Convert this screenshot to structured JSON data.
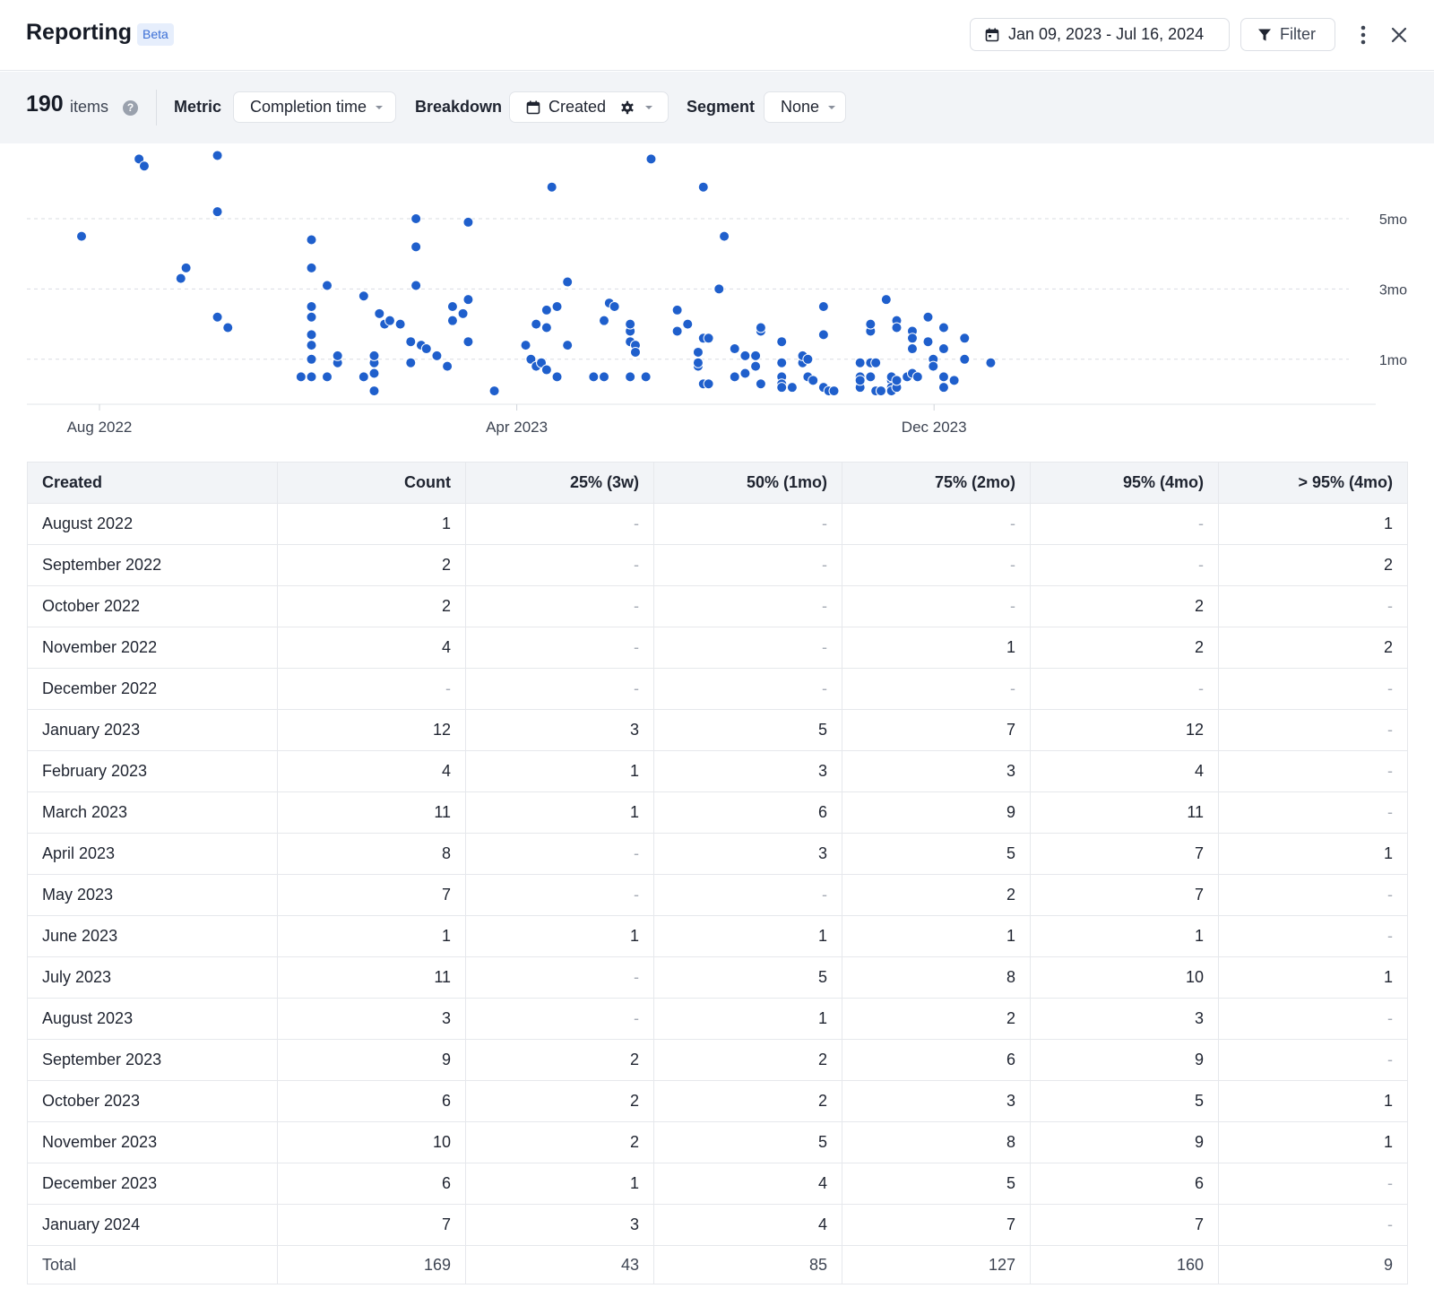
{
  "header": {
    "title": "Reporting",
    "badge": "Beta",
    "date_range": "Jan 09, 2023 - Jul 16, 2024",
    "filter_label": "Filter"
  },
  "controls": {
    "item_count": "190",
    "item_count_label": "items",
    "help_glyph": "?",
    "metric_label": "Metric",
    "metric_value": "Completion time",
    "breakdown_label": "Breakdown",
    "breakdown_value": "Created",
    "segment_label": "Segment",
    "segment_value": "None"
  },
  "chart_data": {
    "type": "scatter",
    "title": "",
    "xlabel": "",
    "ylabel": "",
    "x_ticks": [
      "Aug 2022",
      "Apr 2023",
      "Dec 2023"
    ],
    "y_ticks": [
      "1mo",
      "3mo",
      "5mo"
    ],
    "grid": "horizontal dashed",
    "point_color": "#1f5fcc",
    "x_units": "months since Aug 2022",
    "y_units": "months",
    "points": [
      [
        0.0,
        4.5
      ],
      [
        1.1,
        6.7
      ],
      [
        1.2,
        6.5
      ],
      [
        1.9,
        3.3
      ],
      [
        2.0,
        3.6
      ],
      [
        2.6,
        6.8
      ],
      [
        2.6,
        5.2
      ],
      [
        2.6,
        2.2
      ],
      [
        2.8,
        1.9
      ],
      [
        4.2,
        0.5
      ],
      [
        4.4,
        0.5
      ],
      [
        4.4,
        1.0
      ],
      [
        4.4,
        1.4
      ],
      [
        4.4,
        1.7
      ],
      [
        4.4,
        2.2
      ],
      [
        4.4,
        2.5
      ],
      [
        4.4,
        3.6
      ],
      [
        4.4,
        4.4
      ],
      [
        4.7,
        0.5
      ],
      [
        4.7,
        3.1
      ],
      [
        4.9,
        0.9
      ],
      [
        4.9,
        1.1
      ],
      [
        5.4,
        0.5
      ],
      [
        5.4,
        2.8
      ],
      [
        5.6,
        0.1
      ],
      [
        5.6,
        0.6
      ],
      [
        5.6,
        0.9
      ],
      [
        5.6,
        1.1
      ],
      [
        5.7,
        2.3
      ],
      [
        5.8,
        2.0
      ],
      [
        5.9,
        2.1
      ],
      [
        6.1,
        2.0
      ],
      [
        6.3,
        0.9
      ],
      [
        6.3,
        1.5
      ],
      [
        6.4,
        4.2
      ],
      [
        6.4,
        5.0
      ],
      [
        6.4,
        3.1
      ],
      [
        6.5,
        1.4
      ],
      [
        6.6,
        1.3
      ],
      [
        6.8,
        1.1
      ],
      [
        7.0,
        0.8
      ],
      [
        7.1,
        2.5
      ],
      [
        7.1,
        2.1
      ],
      [
        7.3,
        2.3
      ],
      [
        7.4,
        1.5
      ],
      [
        7.4,
        2.7
      ],
      [
        7.4,
        4.9
      ],
      [
        7.9,
        0.1
      ],
      [
        8.5,
        1.4
      ],
      [
        8.6,
        1.0
      ],
      [
        8.7,
        2.0
      ],
      [
        8.7,
        0.8
      ],
      [
        8.8,
        0.9
      ],
      [
        8.9,
        0.7
      ],
      [
        8.9,
        1.9
      ],
      [
        9.0,
        5.9
      ],
      [
        8.9,
        2.4
      ],
      [
        9.1,
        0.5
      ],
      [
        9.1,
        2.5
      ],
      [
        9.3,
        1.4
      ],
      [
        9.3,
        3.2
      ],
      [
        9.8,
        0.5
      ],
      [
        10.0,
        0.5
      ],
      [
        10.0,
        2.1
      ],
      [
        10.1,
        2.6
      ],
      [
        10.2,
        2.5
      ],
      [
        10.5,
        1.8
      ],
      [
        10.5,
        1.5
      ],
      [
        10.5,
        2.0
      ],
      [
        10.6,
        1.4
      ],
      [
        10.6,
        1.2
      ],
      [
        10.5,
        0.5
      ],
      [
        10.8,
        0.5
      ],
      [
        10.9,
        6.7
      ],
      [
        11.4,
        2.4
      ],
      [
        11.4,
        1.8
      ],
      [
        11.6,
        2.0
      ],
      [
        11.8,
        1.2
      ],
      [
        11.8,
        0.8
      ],
      [
        11.8,
        0.9
      ],
      [
        11.9,
        0.3
      ],
      [
        11.9,
        5.9
      ],
      [
        11.9,
        1.6
      ],
      [
        12.0,
        0.3
      ],
      [
        12.0,
        1.6
      ],
      [
        12.2,
        3.0
      ],
      [
        12.3,
        4.5
      ],
      [
        12.5,
        0.5
      ],
      [
        12.5,
        1.3
      ],
      [
        12.7,
        0.6
      ],
      [
        12.7,
        1.1
      ],
      [
        12.9,
        0.8
      ],
      [
        12.9,
        1.1
      ],
      [
        13.0,
        0.3
      ],
      [
        13.0,
        1.8
      ],
      [
        13.0,
        1.9
      ],
      [
        13.4,
        1.5
      ],
      [
        13.4,
        0.9
      ],
      [
        13.4,
        0.5
      ],
      [
        13.4,
        0.3
      ],
      [
        13.4,
        0.2
      ],
      [
        13.6,
        0.2
      ],
      [
        13.8,
        0.9
      ],
      [
        13.8,
        1.1
      ],
      [
        13.9,
        0.5
      ],
      [
        13.9,
        1.0
      ],
      [
        14.0,
        0.4
      ],
      [
        14.2,
        2.5
      ],
      [
        14.2,
        1.7
      ],
      [
        14.2,
        0.2
      ],
      [
        14.3,
        0.1
      ],
      [
        14.4,
        0.1
      ],
      [
        14.9,
        0.5
      ],
      [
        14.9,
        0.2
      ],
      [
        14.9,
        0.9
      ],
      [
        14.9,
        0.4
      ],
      [
        15.1,
        1.8
      ],
      [
        15.1,
        2.0
      ],
      [
        15.1,
        0.5
      ],
      [
        15.1,
        0.9
      ],
      [
        15.2,
        0.1
      ],
      [
        15.2,
        0.9
      ],
      [
        15.3,
        0.1
      ],
      [
        15.3,
        0.1
      ],
      [
        15.4,
        2.7
      ],
      [
        15.5,
        0.4
      ],
      [
        15.5,
        0.2
      ],
      [
        15.5,
        0.5
      ],
      [
        15.5,
        0.1
      ],
      [
        15.6,
        2.1
      ],
      [
        15.6,
        1.9
      ],
      [
        15.6,
        0.2
      ],
      [
        15.6,
        0.4
      ],
      [
        15.8,
        0.5
      ],
      [
        15.9,
        1.8
      ],
      [
        15.9,
        1.6
      ],
      [
        15.9,
        1.3
      ],
      [
        15.9,
        0.6
      ],
      [
        16.0,
        0.5
      ],
      [
        16.2,
        2.2
      ],
      [
        16.2,
        1.5
      ],
      [
        16.3,
        1.0
      ],
      [
        16.3,
        0.8
      ],
      [
        16.5,
        1.9
      ],
      [
        16.5,
        1.3
      ],
      [
        16.5,
        0.5
      ],
      [
        16.5,
        0.2
      ],
      [
        16.7,
        0.4
      ],
      [
        16.9,
        1.6
      ],
      [
        16.9,
        1.0
      ],
      [
        17.4,
        0.9
      ]
    ]
  },
  "table": {
    "headers": [
      "Created",
      "Count",
      "25% (3w)",
      "50% (1mo)",
      "75% (2mo)",
      "95% (4mo)",
      "> 95% (4mo)"
    ],
    "rows": [
      [
        "August 2022",
        "1",
        "-",
        "-",
        "-",
        "-",
        "1"
      ],
      [
        "September 2022",
        "2",
        "-",
        "-",
        "-",
        "-",
        "2"
      ],
      [
        "October 2022",
        "2",
        "-",
        "-",
        "-",
        "2",
        "-"
      ],
      [
        "November 2022",
        "4",
        "-",
        "-",
        "1",
        "2",
        "2"
      ],
      [
        "December 2022",
        "-",
        "-",
        "-",
        "-",
        "-",
        "-"
      ],
      [
        "January 2023",
        "12",
        "3",
        "5",
        "7",
        "12",
        "-"
      ],
      [
        "February 2023",
        "4",
        "1",
        "3",
        "3",
        "4",
        "-"
      ],
      [
        "March 2023",
        "11",
        "1",
        "6",
        "9",
        "11",
        "-"
      ],
      [
        "April 2023",
        "8",
        "-",
        "3",
        "5",
        "7",
        "1"
      ],
      [
        "May 2023",
        "7",
        "-",
        "-",
        "2",
        "7",
        "-"
      ],
      [
        "June 2023",
        "1",
        "1",
        "1",
        "1",
        "1",
        "-"
      ],
      [
        "July 2023",
        "11",
        "-",
        "5",
        "8",
        "10",
        "1"
      ],
      [
        "August 2023",
        "3",
        "-",
        "1",
        "2",
        "3",
        "-"
      ],
      [
        "September 2023",
        "9",
        "2",
        "2",
        "6",
        "9",
        "-"
      ],
      [
        "October 2023",
        "6",
        "2",
        "2",
        "3",
        "5",
        "1"
      ],
      [
        "November 2023",
        "10",
        "2",
        "5",
        "8",
        "9",
        "1"
      ],
      [
        "December 2023",
        "6",
        "1",
        "4",
        "5",
        "6",
        "-"
      ],
      [
        "January 2024",
        "7",
        "3",
        "4",
        "7",
        "7",
        "-"
      ]
    ],
    "total": [
      "Total",
      "169",
      "43",
      "85",
      "127",
      "160",
      "9"
    ]
  }
}
